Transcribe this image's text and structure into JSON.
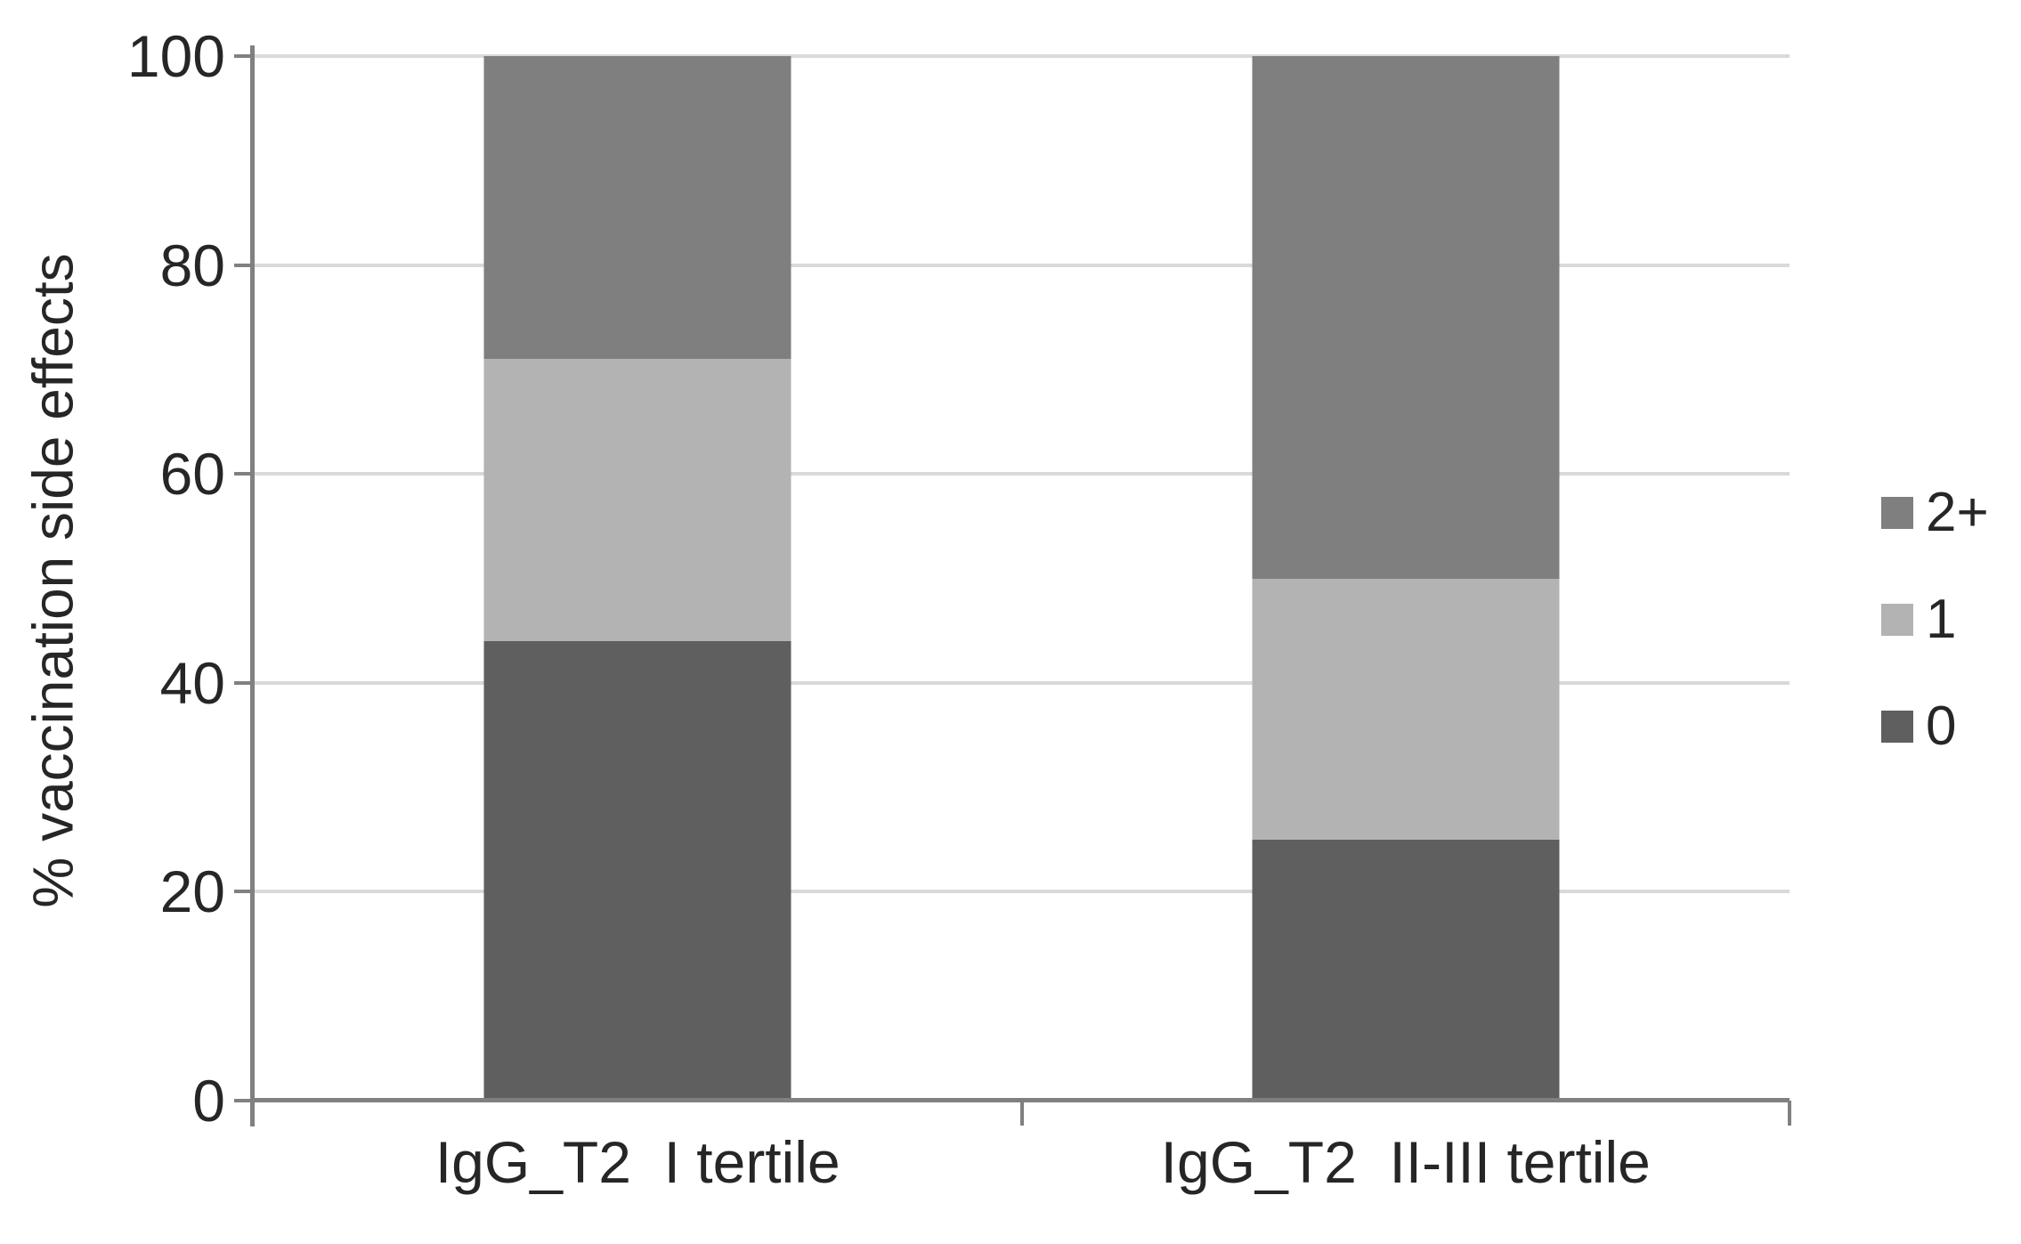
{
  "chart_data": {
    "type": "bar",
    "stacked": true,
    "title": "",
    "ylabel": "% vaccination side effects",
    "xlabel": "",
    "ylim": [
      0,
      100
    ],
    "yticks": [
      0,
      20,
      40,
      60,
      80,
      100
    ],
    "grid": "horizontal",
    "gridline_color": "#d9d9d9",
    "axis_color": "#808080",
    "text_color": "#262626",
    "legend_position": "right",
    "categories": [
      "IgG_T2  I tertile",
      "IgG_T2  II-III tertile"
    ],
    "series": [
      {
        "name": "0",
        "color": "#5f5f5f",
        "values": [
          44,
          25
        ]
      },
      {
        "name": "1",
        "color": "#b3b3b3",
        "values": [
          27,
          25
        ]
      },
      {
        "name": "2+",
        "color": "#7f7f7f",
        "values": [
          29,
          50
        ]
      }
    ],
    "legend_order": [
      "2+",
      "1",
      "0"
    ]
  }
}
